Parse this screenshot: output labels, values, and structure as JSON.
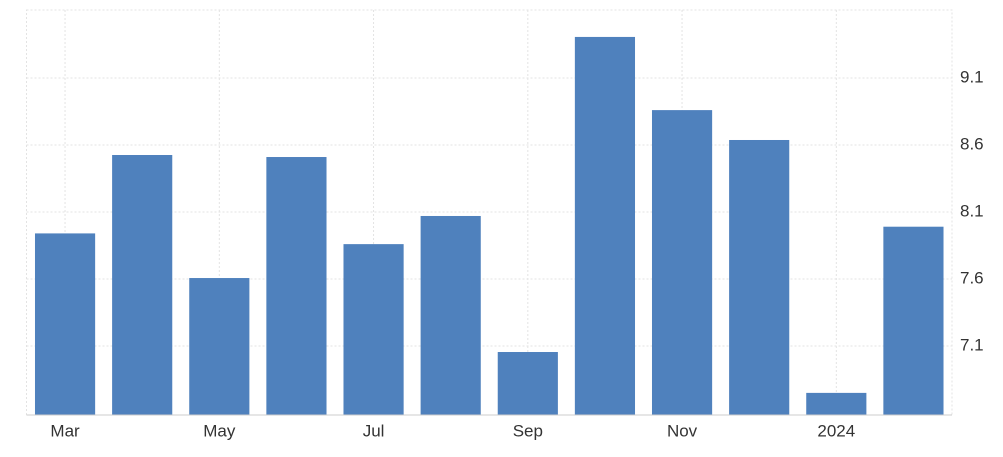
{
  "chart_data": {
    "type": "bar",
    "categories": [
      "Mar",
      null,
      "May",
      null,
      "Jul",
      null,
      "Sep",
      null,
      "Nov",
      null,
      "2024",
      null
    ],
    "values": [
      7.94,
      8.525,
      7.607,
      8.51,
      7.86,
      8.07,
      7.055,
      9.406,
      8.86,
      8.637,
      6.75,
      7.99
    ],
    "color": "#4f81bd",
    "ylim": [
      6.585,
      9.607
    ],
    "yticks": [
      7.1,
      7.6,
      8.1,
      8.6,
      9.1
    ],
    "grid": true
  }
}
